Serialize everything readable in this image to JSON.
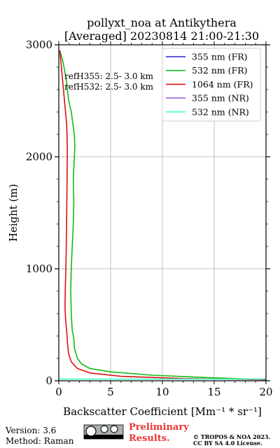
{
  "chart_data": {
    "type": "line",
    "title_line1": "pollyxt_noa at Antikythera",
    "title_line2": "[Averaged] 20230814 21:00-21:30",
    "xlabel": "Backscatter Coefficient [Mm⁻¹ * sr⁻¹]",
    "ylabel": "Height (m)",
    "xlim": [
      0,
      20
    ],
    "ylim": [
      0,
      3000
    ],
    "xticks": [
      "0",
      "5",
      "10",
      "15",
      "20"
    ],
    "yticks": [
      "0",
      "1000",
      "2000",
      "3000"
    ],
    "grid": true,
    "legend_position": "top-right",
    "annotations": [
      "refH355:  2.5- 3.0 km",
      "refH532:  2.5- 3.0 km"
    ],
    "series": [
      {
        "name": "355 nm (FR)",
        "color": "#2222cc",
        "x": [],
        "y": []
      },
      {
        "name": "532 nm (FR)",
        "color": "#11bb11",
        "x": [
          20,
          14,
          9,
          5,
          3,
          2.2,
          1.8,
          1.6,
          1.5,
          1.45,
          1.3,
          1.2,
          1.15,
          1.2,
          1.3,
          1.4,
          1.45,
          1.4,
          1.45,
          1.5,
          1.55,
          1.5,
          1.35,
          1.2,
          0.95,
          0.7,
          0.4,
          0.1
        ],
        "y": [
          10,
          30,
          50,
          80,
          110,
          150,
          200,
          260,
          300,
          380,
          450,
          600,
          800,
          1000,
          1200,
          1400,
          1600,
          1800,
          1900,
          2000,
          2100,
          2200,
          2300,
          2400,
          2500,
          2700,
          2850,
          2950
        ]
      },
      {
        "name": "1064 nm (FR)",
        "color": "#dd1111",
        "x": [
          20,
          12,
          6,
          3,
          1.8,
          1.2,
          0.95,
          0.85,
          0.8,
          0.72,
          0.65,
          0.6,
          0.62,
          0.68,
          0.72,
          0.75,
          0.78,
          0.8,
          0.82,
          0.82,
          0.8,
          0.75,
          0.65,
          0.5,
          0.35,
          0.2,
          0.08
        ],
        "y": [
          10,
          20,
          40,
          70,
          110,
          170,
          240,
          320,
          400,
          480,
          560,
          650,
          800,
          1000,
          1200,
          1400,
          1600,
          1800,
          2000,
          2100,
          2200,
          2300,
          2400,
          2550,
          2700,
          2850,
          2950
        ]
      },
      {
        "name": "355 nm (NR)",
        "color": "#9966dd",
        "x": [],
        "y": []
      },
      {
        "name": "532 nm (NR)",
        "color": "#44ffcc",
        "x": [
          0,
          20
        ],
        "y": [
          15,
          15
        ]
      }
    ]
  },
  "footer": {
    "version": "Version: 3.6",
    "method": "Method: Raman",
    "preliminary_line1": "Preliminary",
    "preliminary_line2": "Results.",
    "copyright_line1": "© TROPOS & NOA 2023.",
    "copyright_line2": "CC BY SA 4.0 License.",
    "license_badge": "cc-by-sa-badge"
  }
}
